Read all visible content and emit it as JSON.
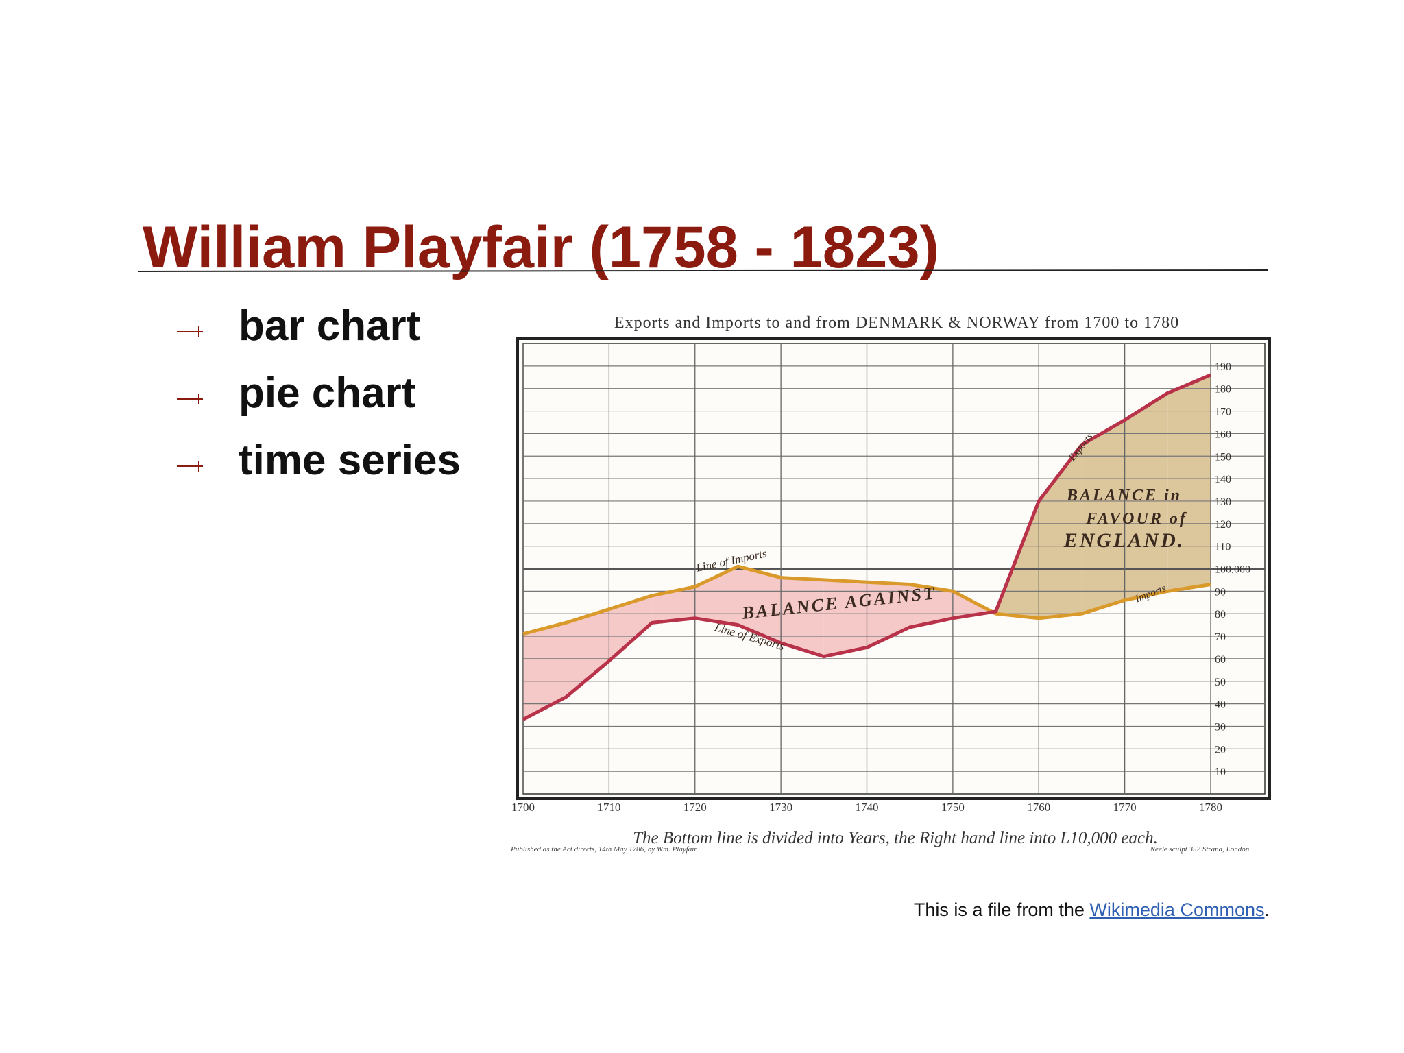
{
  "title": "William Playfair (1758 - 1823)",
  "bullets": [
    "bar chart",
    "pie chart",
    "time series"
  ],
  "chart_data": {
    "type": "line",
    "title": "Exports and Imports to and from DENMARK & NORWAY from 1700 to 1780",
    "x_label": "The Bottom line is divided into Years, the Right hand line into L10,000 each.",
    "notes": [
      "Published as the Act directs, 14th May 1786, by Wm. Playfair",
      "Neele sculpt 352 Strand, London."
    ],
    "annotations": [
      "Line of Imports",
      "Line of Exports",
      "BALANCE AGAINST",
      "Exports",
      "Imports"
    ],
    "favour_annotation": [
      "BALANCE in",
      "FAVOUR of",
      "ENGLAND."
    ],
    "x": [
      1700,
      1705,
      1710,
      1715,
      1720,
      1725,
      1730,
      1735,
      1740,
      1745,
      1750,
      1755,
      1760,
      1765,
      1770,
      1775,
      1780
    ],
    "series": [
      {
        "name": "Imports",
        "color": "#d99a2b",
        "values": [
          71,
          76,
          82,
          88,
          92,
          101,
          96,
          95,
          94,
          93,
          90,
          80,
          78,
          80,
          86,
          90,
          93
        ]
      },
      {
        "name": "Exports",
        "color": "#b8324a",
        "values": [
          33,
          43,
          59,
          76,
          78,
          75,
          67,
          61,
          65,
          74,
          78,
          81,
          130,
          155,
          166,
          178,
          186
        ]
      }
    ],
    "balance_colors": {
      "against": "#f6c9c9",
      "favour": "#dcc69c"
    },
    "xlim": [
      1700,
      1780
    ],
    "xticks": [
      1700,
      1710,
      1720,
      1730,
      1740,
      1750,
      1760,
      1770,
      1780
    ],
    "ylim": [
      0,
      200
    ],
    "yticks": [
      10,
      20,
      30,
      40,
      50,
      60,
      70,
      80,
      90,
      {
        "value": 100,
        "label": "100,000"
      },
      110,
      120,
      130,
      140,
      150,
      160,
      170,
      180,
      190
    ],
    "grid": true
  },
  "caption": {
    "text": "This is a file from the ",
    "link": "Wikimedia Commons",
    "end": "."
  }
}
